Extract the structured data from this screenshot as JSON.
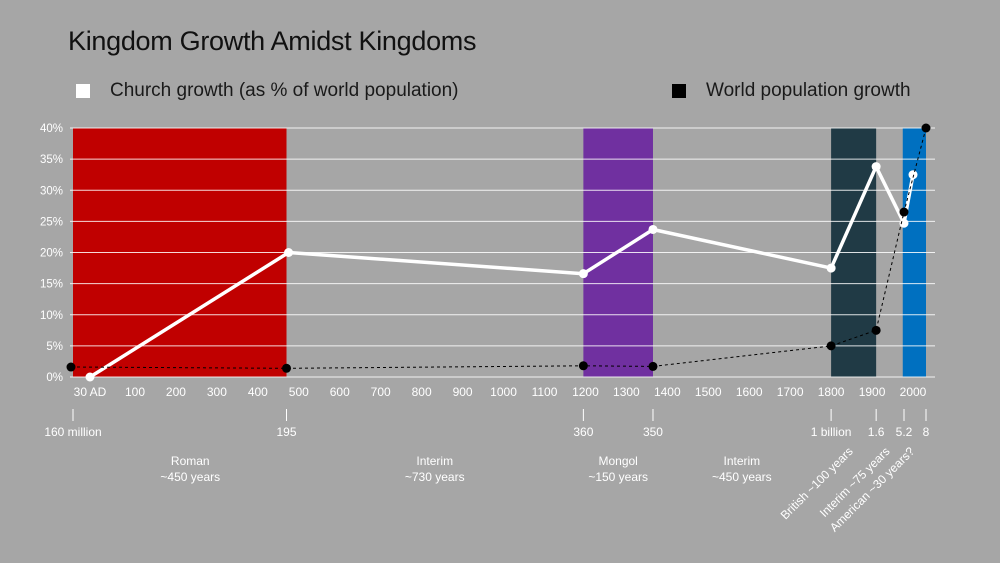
{
  "chart_data": {
    "type": "line",
    "title": "Kingdom Growth Amidst Kingdoms",
    "ylim": [
      0,
      40
    ],
    "y_ticks": [
      0,
      5,
      10,
      15,
      20,
      25,
      30,
      35,
      40
    ],
    "y_tick_format": "%",
    "x_ticks": [
      {
        "label": "30 AD",
        "year": 30
      },
      {
        "label": "100",
        "year": 100
      },
      {
        "label": "200",
        "year": 200
      },
      {
        "label": "300",
        "year": 300
      },
      {
        "label": "400",
        "year": 400
      },
      {
        "label": "500",
        "year": 500
      },
      {
        "label": "600",
        "year": 600
      },
      {
        "label": "700",
        "year": 700
      },
      {
        "label": "800",
        "year": 800
      },
      {
        "label": "900",
        "year": 900
      },
      {
        "label": "1000",
        "year": 1000
      },
      {
        "label": "1100",
        "year": 1100
      },
      {
        "label": "1200",
        "year": 1200
      },
      {
        "label": "1300",
        "year": 1300
      },
      {
        "label": "1400",
        "year": 1400
      },
      {
        "label": "1500",
        "year": 1500
      },
      {
        "label": "1600",
        "year": 1600
      },
      {
        "label": "1700",
        "year": 1700
      },
      {
        "label": "1800",
        "year": 1800
      },
      {
        "label": "1900",
        "year": 1900
      },
      {
        "label": "2000",
        "year": 2000
      }
    ],
    "series": [
      {
        "name": "Church growth (as % of world population)",
        "color": "#ffffff",
        "style": "solid",
        "points": [
          {
            "year": 30,
            "value": 0
          },
          {
            "year": 475,
            "value": 20
          },
          {
            "year": 1195,
            "value": 16.6
          },
          {
            "year": 1365,
            "value": 23.7
          },
          {
            "year": 1800,
            "value": 17.5
          },
          {
            "year": 1910,
            "value": 33.8
          },
          {
            "year": 1978,
            "value": 24.7
          },
          {
            "year": 2000,
            "value": 32.5
          }
        ]
      },
      {
        "name": "World population growth",
        "color": "#000000",
        "style": "dashed",
        "points": [
          {
            "year": -10,
            "value": 1.6
          },
          {
            "year": 470,
            "value": 1.4
          },
          {
            "year": 1195,
            "value": 1.8
          },
          {
            "year": 1365,
            "value": 1.7
          },
          {
            "year": 1800,
            "value": 5
          },
          {
            "year": 1910,
            "value": 7.5
          },
          {
            "year": 1978,
            "value": 26.5
          },
          {
            "year": 2030,
            "value": 40
          }
        ]
      }
    ],
    "eras": [
      {
        "start": 0,
        "end": 470,
        "color": "#c00000"
      },
      {
        "start": 1195,
        "end": 1365,
        "color": "#7030a0"
      },
      {
        "start": 1800,
        "end": 1910,
        "color": "#203a45"
      },
      {
        "start": 1975,
        "end": 2030,
        "color": "#0070c0"
      }
    ],
    "population_markers": [
      {
        "label": "160 million",
        "year": 0
      },
      {
        "label": "195",
        "year": 470
      },
      {
        "label": "360",
        "year": 1195
      },
      {
        "label": "350",
        "year": 1365
      },
      {
        "label": "1 billion",
        "year": 1800
      },
      {
        "label": "1.6",
        "year": 1910
      },
      {
        "label": "5.2",
        "year": 1978
      },
      {
        "label": "8",
        "year": 2030
      }
    ],
    "era_labels": [
      {
        "name": "Roman",
        "duration": "~450 years",
        "year": 235
      },
      {
        "name": "Interim",
        "duration": "~730 years",
        "year": 832
      },
      {
        "name": "Mongol",
        "duration": "~150 years",
        "year": 1280
      },
      {
        "name": "Interim",
        "duration": "~450 years",
        "year": 1582
      }
    ],
    "rotated_era_labels": [
      {
        "text": "British ~100 years",
        "year": 1855
      },
      {
        "text": "Interim ~75 years",
        "year": 1945
      },
      {
        "text": "American ~30 years?",
        "year": 2005
      }
    ]
  },
  "legend": {
    "church_label": "Church growth (as % of world population)",
    "world_label": "World population growth",
    "church_color": "#ffffff",
    "world_color": "#000000"
  }
}
